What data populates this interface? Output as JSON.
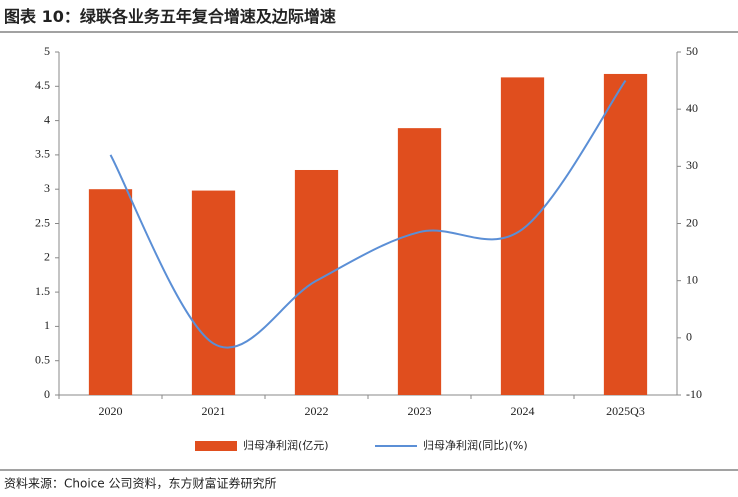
{
  "chart_data": {
    "type": "bar",
    "title": "图表 10：绿联各业务五年复合增速及边际增速",
    "source": "资料来源：Choice 公司资料，东方财富证券研究所",
    "categories": [
      "2020",
      "2021",
      "2022",
      "2023",
      "2024",
      "2025Q3"
    ],
    "series": [
      {
        "name": "归母净利润(亿元)",
        "type": "bar",
        "color": "#e04e1e",
        "values": [
          3.0,
          2.98,
          3.28,
          3.89,
          4.63,
          4.68
        ]
      },
      {
        "name": "归母净利润(同比)(%)",
        "type": "line",
        "axis": "y2",
        "color": "#5b8fd6",
        "values": [
          32,
          -1,
          10,
          18.5,
          19,
          45
        ]
      }
    ],
    "ylim": [
      0,
      5
    ],
    "yticks": [
      0,
      0.5,
      1,
      1.5,
      2,
      2.5,
      3,
      3.5,
      4,
      4.5,
      5
    ],
    "y2lim": [
      -10,
      50
    ],
    "y2ticks": [
      -10,
      0,
      10,
      20,
      30,
      40,
      50
    ],
    "grid": false,
    "legend": "bottom"
  }
}
